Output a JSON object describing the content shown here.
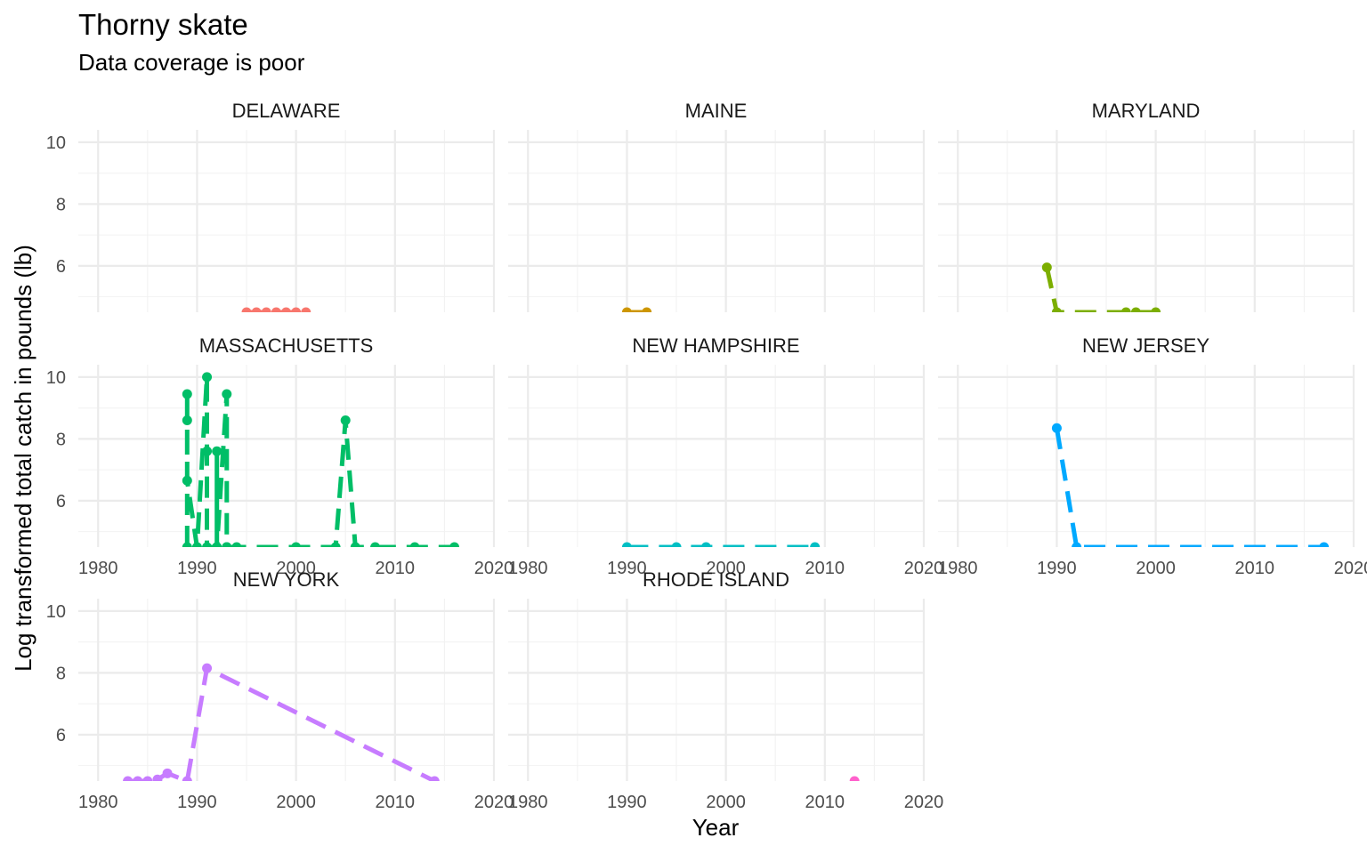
{
  "chart_data": {
    "type": "line",
    "title": "Thorny skate",
    "subtitle": "Data coverage is poor",
    "xlabel": "Year",
    "ylabel": "Log transformed  total catch in pounds (lb)",
    "xlim": [
      1978,
      2020
    ],
    "ylim": [
      4.5,
      10.4
    ],
    "x_ticks": [
      1980,
      1990,
      2000,
      2010,
      2020
    ],
    "y_ticks": [
      6,
      8,
      10
    ],
    "grid": true,
    "legend": "none",
    "line_style": "dashed with points",
    "facets": [
      {
        "name": "DELAWARE",
        "color": "#F8766D",
        "x": [
          1995,
          1996,
          1997,
          1998,
          1999,
          2000,
          2001
        ],
        "y": [
          4.5,
          4.5,
          4.5,
          4.5,
          4.5,
          4.5,
          4.5
        ]
      },
      {
        "name": "MAINE",
        "color": "#CD9600",
        "x": [
          1990,
          1992
        ],
        "y": [
          4.5,
          4.5
        ]
      },
      {
        "name": "MARYLAND",
        "color": "#7CAE00",
        "x": [
          1989,
          1990,
          1997,
          1998,
          2000
        ],
        "y": [
          5.95,
          4.5,
          4.5,
          4.5,
          4.5
        ]
      },
      {
        "name": "MASSACHUSETTS",
        "color": "#00BE67",
        "x": [
          1989,
          1989,
          1989,
          1989,
          1990,
          1991,
          1991,
          1991,
          1992,
          1992,
          1992,
          1993,
          1993,
          1993,
          1994,
          2000,
          2004,
          2005,
          2006,
          2008,
          2012,
          2016
        ],
        "y": [
          4.5,
          9.45,
          8.6,
          6.65,
          4.5,
          10.0,
          7.6,
          4.5,
          4.5,
          7.6,
          4.5,
          9.45,
          4.5,
          4.5,
          4.5,
          4.5,
          4.5,
          8.6,
          4.5,
          4.5,
          4.5,
          4.5
        ]
      },
      {
        "name": "NEW HAMPSHIRE",
        "color": "#00BFC4",
        "x": [
          1990,
          1995,
          1998,
          2009
        ],
        "y": [
          4.5,
          4.5,
          4.5,
          4.5
        ]
      },
      {
        "name": "NEW JERSEY",
        "color": "#00A9FF",
        "x": [
          1990,
          1992,
          2017
        ],
        "y": [
          8.35,
          4.5,
          4.5
        ]
      },
      {
        "name": "NEW YORK",
        "color": "#C77CFF",
        "x": [
          1983,
          1984,
          1985,
          1986,
          1987,
          1989,
          1991,
          2014
        ],
        "y": [
          4.5,
          4.5,
          4.5,
          4.55,
          4.75,
          4.5,
          8.15,
          4.5
        ]
      },
      {
        "name": "RHODE ISLAND",
        "color": "#FF61CC",
        "x": [
          2013
        ],
        "y": [
          4.5
        ]
      }
    ]
  }
}
